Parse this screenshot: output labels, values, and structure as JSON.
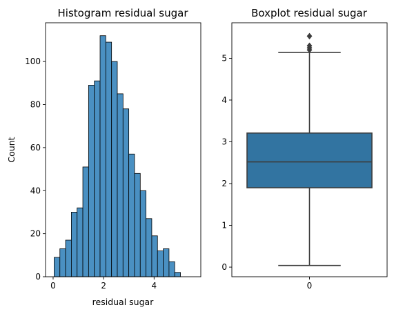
{
  "chart_data": [
    {
      "type": "bar",
      "title": "Histogram residual sugar",
      "xlabel": "residual sugar",
      "ylabel": "Count",
      "xlim": [
        -0.3,
        5.85
      ],
      "ylim": [
        0,
        118
      ],
      "xticks": [
        0,
        2,
        4
      ],
      "yticks": [
        0,
        20,
        40,
        60,
        80,
        100
      ],
      "grid": false,
      "color": "#4a90c2",
      "edge_color": "#000000",
      "bin_width": 0.2275,
      "bins": [
        {
          "x0": 0.04,
          "count": 9
        },
        {
          "x0": 0.2675,
          "count": 13
        },
        {
          "x0": 0.495,
          "count": 17
        },
        {
          "x0": 0.7225,
          "count": 30
        },
        {
          "x0": 0.95,
          "count": 32
        },
        {
          "x0": 1.1775,
          "count": 51
        },
        {
          "x0": 1.405,
          "count": 89
        },
        {
          "x0": 1.6325,
          "count": 91
        },
        {
          "x0": 1.86,
          "count": 112
        },
        {
          "x0": 2.0875,
          "count": 109
        },
        {
          "x0": 2.315,
          "count": 100
        },
        {
          "x0": 2.5425,
          "count": 85
        },
        {
          "x0": 2.77,
          "count": 78
        },
        {
          "x0": 2.9975,
          "count": 57
        },
        {
          "x0": 3.225,
          "count": 48
        },
        {
          "x0": 3.4525,
          "count": 40
        },
        {
          "x0": 3.68,
          "count": 27
        },
        {
          "x0": 3.9075,
          "count": 19
        },
        {
          "x0": 4.135,
          "count": 12
        },
        {
          "x0": 4.3625,
          "count": 13
        },
        {
          "x0": 4.59,
          "count": 7
        },
        {
          "x0": 4.8175,
          "count": 2
        }
      ]
    },
    {
      "type": "box",
      "title": "Boxplot residual sugar",
      "xticks": [
        "0"
      ],
      "ylim": [
        -0.23,
        5.85
      ],
      "yticks": [
        0,
        1,
        2,
        3,
        4,
        5
      ],
      "grid": false,
      "color": "#3274a1",
      "line_color": "#3c3c3c",
      "box": {
        "whisker_low": 0.04,
        "q1": 1.9,
        "median": 2.52,
        "q3": 3.21,
        "whisker_high": 5.14,
        "outliers": [
          5.2,
          5.25,
          5.3,
          5.53
        ]
      }
    }
  ]
}
